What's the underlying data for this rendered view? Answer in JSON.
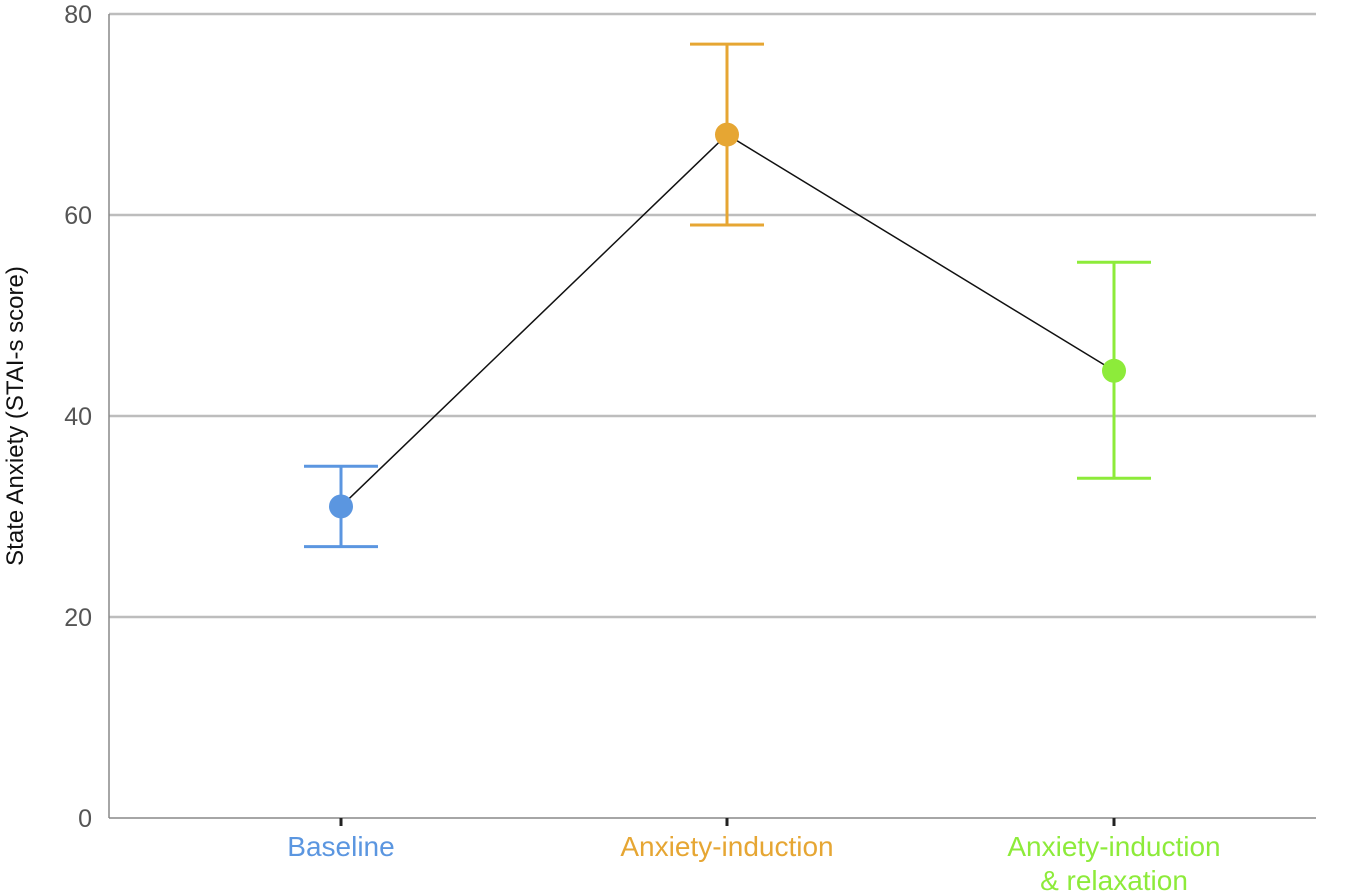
{
  "chart_data": {
    "type": "scatter",
    "title": "",
    "xlabel": "",
    "ylabel": "State Anxiety (STAI-s score)",
    "ylim": [
      0,
      80
    ],
    "yticks": [
      0,
      20,
      40,
      60,
      80
    ],
    "grid": "horizontal",
    "connecting_line": true,
    "categories": [
      {
        "label_lines": [
          "Baseline"
        ],
        "mean": 31,
        "error_low": 27,
        "error_high": 35,
        "color": "#5B96E0"
      },
      {
        "label_lines": [
          "Anxiety-induction"
        ],
        "mean": 68,
        "error_low": 59,
        "error_high": 77,
        "color": "#E6A633"
      },
      {
        "label_lines": [
          "Anxiety-induction",
          "& relaxation"
        ],
        "mean": 44.5,
        "error_low": 33.8,
        "error_high": 55.3,
        "color": "#8DEB3A"
      }
    ]
  }
}
